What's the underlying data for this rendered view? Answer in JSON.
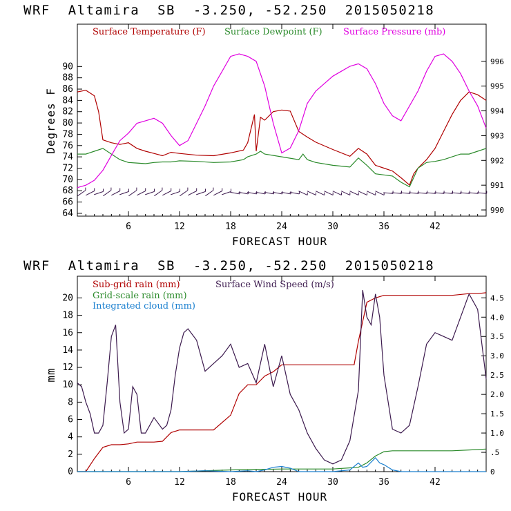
{
  "charts_title": "WRF  Altamira  SB  -3.250, -52.250  2015050218",
  "chart_data": [
    {
      "type": "line",
      "title": "WRF  Altamira  SB  -3.250, -52.250  2015050218",
      "xlabel": "FORECAST HOUR",
      "ylabel": "Degrees F",
      "xlim": [
        0,
        48
      ],
      "ylim": [
        63.5,
        97.5
      ],
      "y2lim": [
        989.75,
        997.5
      ],
      "xticks": [
        "6",
        "12",
        "18",
        "24",
        "30",
        "36",
        "42"
      ],
      "yticks": [
        "64",
        "66",
        "68",
        "70",
        "72",
        "74",
        "76",
        "78",
        "80",
        "82",
        "84",
        "86",
        "88",
        "90"
      ],
      "y2ticks": [
        "990",
        "991",
        "992",
        "993",
        "994",
        "995",
        "996"
      ],
      "grid": false,
      "legend_position": "top",
      "series": [
        {
          "name": "Surface Temperature (F)",
          "axis": "left",
          "color": "#b00000",
          "x": [
            0,
            1,
            2,
            2.5,
            3,
            4,
            5,
            6,
            7,
            8,
            9,
            10,
            11,
            12,
            14,
            16,
            18,
            19.5,
            20,
            20.8,
            21,
            21.5,
            22,
            23,
            24,
            25,
            26,
            27,
            28,
            30,
            32,
            33,
            34,
            35,
            36,
            37,
            38,
            39,
            39.5,
            40,
            41,
            42,
            43,
            44,
            45,
            46,
            47,
            47.5,
            48
          ],
          "values": [
            85.5,
            85.8,
            84.8,
            82,
            77,
            76.5,
            76.2,
            76.5,
            75.5,
            75.0,
            74.6,
            74.2,
            74.8,
            74.6,
            74.3,
            74.2,
            74.7,
            75.2,
            76.5,
            81.5,
            75.0,
            81.0,
            80.5,
            82.0,
            82.3,
            82.1,
            78.5,
            77.5,
            76.6,
            75.3,
            74.1,
            75.5,
            74.5,
            72.5,
            72.0,
            71.5,
            70.3,
            69.0,
            71.0,
            72.0,
            73.5,
            75.5,
            78.5,
            81.5,
            84.0,
            85.5,
            85.0,
            84.5,
            84.0
          ]
        },
        {
          "name": "Surface Dewpoint (F)",
          "axis": "left",
          "color": "#2a8a2a",
          "x": [
            0,
            1,
            2,
            3,
            4,
            5,
            6,
            7,
            8,
            9,
            10,
            11,
            12,
            14,
            16,
            18,
            19.5,
            20,
            21,
            21.5,
            22,
            24,
            26,
            26.5,
            27,
            28,
            30,
            32,
            33,
            34,
            35,
            36,
            37,
            38,
            39,
            40,
            41,
            42,
            43,
            44,
            45,
            46,
            47,
            48
          ],
          "values": [
            74.5,
            74.5,
            75.0,
            75.5,
            74.5,
            73.5,
            73.0,
            72.9,
            72.8,
            73.0,
            73.1,
            73.1,
            73.3,
            73.2,
            73.0,
            73.1,
            73.5,
            74.0,
            74.5,
            75.0,
            74.5,
            74.0,
            73.5,
            74.5,
            73.5,
            73.0,
            72.5,
            72.2,
            73.8,
            72.5,
            71.0,
            70.8,
            70.6,
            69.5,
            68.7,
            72.0,
            73.0,
            73.2,
            73.5,
            74.0,
            74.5,
            74.5,
            75.0,
            75.5
          ]
        },
        {
          "name": "Surface Pressure (mb)",
          "axis": "right",
          "color": "#e000e0",
          "x": [
            0,
            1,
            2,
            3,
            4,
            5,
            6,
            7,
            8,
            9,
            10,
            11,
            12,
            13,
            14,
            15,
            16,
            17,
            18,
            19,
            20,
            21,
            22,
            23,
            24,
            25,
            26,
            27,
            28,
            29,
            30,
            31,
            32,
            33,
            34,
            35,
            36,
            37,
            38,
            39,
            40,
            41,
            42,
            43,
            44,
            45,
            46,
            47,
            48
          ],
          "values": [
            990.9,
            991.0,
            991.2,
            991.6,
            992.2,
            992.8,
            993.1,
            993.5,
            993.6,
            993.7,
            993.5,
            993.0,
            992.6,
            992.8,
            993.5,
            994.2,
            995.0,
            995.6,
            996.2,
            996.3,
            996.2,
            996.0,
            995.0,
            993.5,
            992.3,
            992.5,
            993.2,
            994.3,
            994.8,
            995.1,
            995.4,
            995.6,
            995.8,
            995.9,
            995.7,
            995.1,
            994.3,
            993.8,
            993.6,
            994.2,
            994.8,
            995.6,
            996.2,
            996.3,
            996.0,
            995.5,
            994.8,
            994.2,
            993.3
          ]
        }
      ]
    },
    {
      "type": "line",
      "title": "WRF  Altamira  SB  -3.250, -52.250  2015050218",
      "xlabel": "FORECAST HOUR",
      "ylabel": "mm",
      "xlim": [
        0,
        48
      ],
      "ylim": [
        0,
        22.5
      ],
      "y2lim": [
        0,
        5.06
      ],
      "xticks": [
        "6",
        "12",
        "18",
        "24",
        "30",
        "36",
        "42"
      ],
      "yticks": [
        "0",
        "2",
        "4",
        "6",
        "8",
        "10",
        "12",
        "14",
        "16",
        "18",
        "20"
      ],
      "y2ticks": [
        "0",
        ".5",
        "1.0",
        "1.5",
        "2.0",
        "2.5",
        "3.0",
        "3.5",
        "4.0",
        "4.5"
      ],
      "grid": false,
      "legend_position": "top-left",
      "series": [
        {
          "name": "Sub-grid rain (mm)",
          "axis": "left",
          "color": "#b00000",
          "x": [
            0,
            1,
            2,
            3,
            4,
            5,
            6,
            7,
            8,
            9,
            10,
            11,
            12,
            16,
            18,
            19,
            20,
            21,
            22,
            23,
            24,
            26,
            32.5,
            33,
            34,
            35,
            36,
            38,
            44,
            46,
            47,
            48
          ],
          "values": [
            0,
            0,
            1.5,
            2.8,
            3.1,
            3.1,
            3.2,
            3.4,
            3.4,
            3.4,
            3.5,
            4.5,
            4.8,
            4.8,
            6.5,
            9.0,
            10.0,
            10.0,
            11.0,
            11.5,
            12.3,
            12.3,
            12.3,
            15.0,
            19.5,
            20.0,
            20.3,
            20.3,
            20.3,
            20.5,
            20.5,
            20.6
          ]
        },
        {
          "name": "Grid-scale rain (mm)",
          "axis": "left",
          "color": "#2a8a2a",
          "x": [
            0,
            12,
            18,
            24,
            30,
            33,
            34,
            35,
            36,
            37,
            38,
            44,
            46,
            48
          ],
          "values": [
            0,
            0,
            0.2,
            0.3,
            0.3,
            0.5,
            1.0,
            1.8,
            2.3,
            2.4,
            2.4,
            2.4,
            2.5,
            2.6
          ]
        },
        {
          "name": "Integrated cloud (mm)",
          "axis": "left",
          "color": "#1a7fcf",
          "x": [
            0,
            12,
            15,
            18,
            20,
            21,
            22,
            23,
            24,
            25,
            26,
            30,
            32,
            33,
            33.5,
            34,
            35,
            35.5,
            36,
            37,
            38,
            40,
            48
          ],
          "values": [
            0,
            0,
            0.1,
            0.0,
            0.1,
            0.0,
            0.2,
            0.5,
            0.6,
            0.4,
            0.0,
            0.0,
            0.2,
            1.0,
            0.5,
            0.6,
            1.6,
            1.0,
            0.8,
            0.2,
            0.0,
            0.0,
            0.0
          ]
        },
        {
          "name": "Surface Wind Speed (m/s)",
          "axis": "right",
          "color": "#3c1a4e",
          "x": [
            0,
            0.5,
            1,
            1.5,
            2,
            2.5,
            3,
            3.5,
            4,
            4.5,
            5,
            5.5,
            6,
            6.5,
            7,
            7.5,
            8,
            9,
            10,
            10.5,
            11,
            11.5,
            12,
            12.5,
            13,
            14,
            15,
            16,
            17,
            18,
            19,
            20,
            21,
            22,
            23,
            24,
            25,
            26,
            27,
            28,
            29,
            30,
            31,
            32,
            33,
            33.5,
            34,
            34.5,
            35,
            35.5,
            36,
            37,
            38,
            39,
            40,
            41,
            42,
            43,
            44,
            45,
            46,
            47,
            48
          ],
          "values": [
            2.3,
            2.2,
            1.8,
            1.5,
            1.0,
            1.0,
            1.2,
            2.3,
            3.5,
            3.8,
            1.8,
            1.0,
            1.1,
            2.2,
            2.0,
            1.0,
            1.0,
            1.4,
            1.1,
            1.2,
            1.6,
            2.5,
            3.2,
            3.6,
            3.7,
            3.4,
            2.6,
            2.8,
            3.0,
            3.3,
            2.7,
            2.8,
            2.3,
            3.3,
            2.2,
            3.0,
            2.0,
            1.6,
            1.0,
            0.6,
            0.3,
            0.2,
            0.3,
            0.8,
            2.1,
            4.7,
            4.0,
            3.8,
            4.6,
            4.0,
            2.5,
            1.1,
            1.0,
            1.2,
            2.2,
            3.3,
            3.6,
            3.5,
            3.4,
            4.0,
            4.6,
            4.2,
            2.4
          ]
        }
      ]
    }
  ]
}
